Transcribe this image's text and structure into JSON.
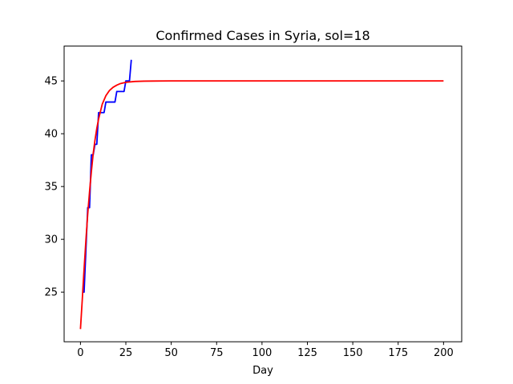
{
  "chart_data": {
    "type": "line",
    "title": "Confirmed Cases in Syria, sol=18",
    "xlabel": "Day",
    "ylabel": "",
    "xlim": [
      -9,
      210
    ],
    "ylim": [
      20.3,
      48.3
    ],
    "xticks": [
      0,
      25,
      50,
      75,
      100,
      125,
      150,
      175,
      200
    ],
    "yticks": [
      25,
      30,
      35,
      40,
      45
    ],
    "grid": false,
    "series": [
      {
        "color": "#0000ff",
        "x": [
          1,
          2,
          3,
          4,
          5,
          6,
          7,
          8,
          9,
          10,
          11,
          12,
          13,
          14,
          15,
          16,
          17,
          18,
          19,
          20,
          21,
          22,
          23,
          24,
          25,
          26,
          27,
          28
        ],
        "y": [
          25,
          25,
          29,
          33,
          33,
          38,
          38,
          39,
          39,
          42,
          42,
          42,
          42,
          43,
          43,
          43,
          43,
          43,
          43,
          44,
          44,
          44,
          44,
          44,
          45,
          45,
          45,
          47
        ]
      },
      {
        "color": "#ff0000",
        "x": [
          0,
          1,
          2,
          3,
          4,
          5,
          6,
          7,
          8,
          9,
          10,
          12,
          14,
          16,
          18,
          20,
          22,
          25,
          30,
          35,
          40,
          50,
          60,
          80,
          100,
          150,
          200
        ],
        "y": [
          21.5,
          24.3,
          27.2,
          29.9,
          32.4,
          34.5,
          36.4,
          38.1,
          39.4,
          40.5,
          41.4,
          42.8,
          43.6,
          44.1,
          44.4,
          44.6,
          44.75,
          44.87,
          44.95,
          44.98,
          44.99,
          45.0,
          45.0,
          45.0,
          45.0,
          45.0,
          45.0
        ]
      }
    ]
  }
}
